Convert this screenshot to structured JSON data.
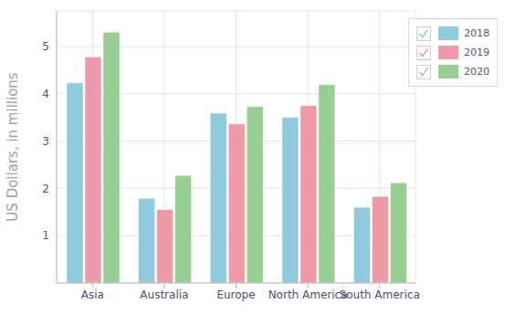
{
  "chart_data": {
    "type": "bar",
    "y_label": "US Dollars, in millions",
    "categories": [
      "Asia",
      "Australia",
      "Europe",
      "North America",
      "South America"
    ],
    "series": [
      {
        "name": "2018",
        "color": "#8fcbdc",
        "values": [
          4.23,
          1.79,
          3.59,
          3.5,
          1.6
        ]
      },
      {
        "name": "2019",
        "color": "#ef9aa8",
        "values": [
          4.78,
          1.55,
          3.36,
          3.75,
          1.83
        ]
      },
      {
        "name": "2020",
        "color": "#97cf93",
        "values": [
          5.3,
          2.27,
          3.73,
          4.19,
          2.12
        ]
      }
    ],
    "ylim": [
      0,
      5.75
    ],
    "yticks": [
      1,
      2,
      3,
      4,
      5
    ],
    "grid": true,
    "legend": "top-right"
  }
}
